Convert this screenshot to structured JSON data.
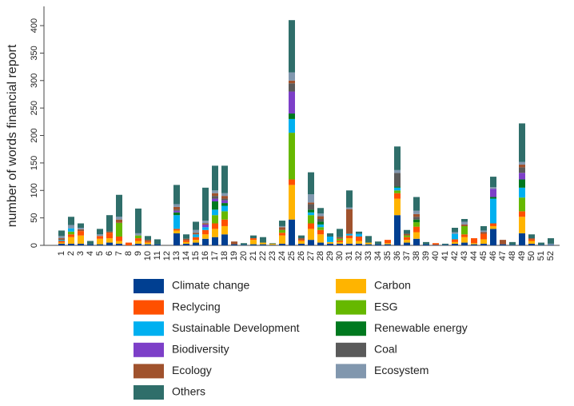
{
  "chart_data": {
    "type": "stacked_bar",
    "ylabel": "number of words financial report",
    "categories": [
      "1",
      "2",
      "3",
      "4",
      "5",
      "6",
      "7",
      "8",
      "9",
      "10",
      "11",
      "12",
      "13",
      "14",
      "15",
      "16",
      "17",
      "18",
      "19",
      "20",
      "21",
      "22",
      "23",
      "24",
      "25",
      "26",
      "27",
      "28",
      "29",
      "30",
      "31",
      "32",
      "33",
      "34",
      "35",
      "36",
      "37",
      "38",
      "39",
      "40",
      "41",
      "42",
      "43",
      "44",
      "45",
      "46",
      "47",
      "48",
      "49",
      "50",
      "51",
      "52"
    ],
    "ylim": [
      0,
      435
    ],
    "yticks": [
      0,
      50,
      100,
      150,
      200,
      250,
      300,
      350,
      400
    ],
    "series": [
      {
        "name": "Climate change",
        "color": "#003f91",
        "values": [
          3,
          3,
          3,
          2,
          2,
          5,
          3,
          0,
          3,
          2,
          2,
          0,
          22,
          3,
          5,
          12,
          15,
          20,
          2,
          1,
          2,
          2,
          1,
          3,
          47,
          3,
          10,
          5,
          3,
          3,
          3,
          3,
          2,
          2,
          2,
          55,
          5,
          12,
          2,
          1,
          1,
          3,
          5,
          2,
          3,
          30,
          2,
          1,
          22,
          3,
          1,
          1
        ]
      },
      {
        "name": "Carbon",
        "color": "#ffb400",
        "values": [
          2,
          12,
          15,
          0,
          10,
          8,
          5,
          0,
          5,
          3,
          0,
          0,
          5,
          3,
          5,
          8,
          15,
          15,
          0,
          0,
          8,
          3,
          2,
          15,
          63,
          5,
          20,
          15,
          3,
          3,
          10,
          5,
          3,
          0,
          2,
          30,
          5,
          12,
          0,
          0,
          0,
          3,
          10,
          2,
          8,
          5,
          0,
          0,
          30,
          5,
          0,
          0
        ]
      },
      {
        "name": "Reclycing",
        "color": "#ff5000",
        "values": [
          3,
          5,
          8,
          0,
          5,
          10,
          8,
          5,
          5,
          2,
          0,
          0,
          3,
          3,
          5,
          8,
          10,
          12,
          0,
          0,
          3,
          0,
          0,
          5,
          10,
          2,
          10,
          8,
          0,
          3,
          5,
          8,
          0,
          0,
          6,
          10,
          5,
          10,
          0,
          3,
          0,
          5,
          5,
          9,
          10,
          5,
          0,
          0,
          10,
          3,
          0,
          0
        ]
      },
      {
        "name": "ESG",
        "color": "#66b800",
        "values": [
          0,
          5,
          0,
          0,
          0,
          0,
          25,
          0,
          5,
          0,
          0,
          0,
          0,
          0,
          0,
          0,
          15,
          15,
          0,
          0,
          0,
          0,
          0,
          5,
          85,
          0,
          15,
          5,
          0,
          3,
          0,
          0,
          0,
          0,
          0,
          5,
          3,
          8,
          0,
          0,
          0,
          0,
          15,
          0,
          0,
          0,
          0,
          0,
          25,
          0,
          0,
          0
        ]
      },
      {
        "name": "Sustainable Development",
        "color": "#00b0f0",
        "values": [
          2,
          6,
          0,
          0,
          0,
          0,
          0,
          0,
          0,
          0,
          0,
          0,
          25,
          0,
          5,
          5,
          10,
          10,
          0,
          0,
          0,
          0,
          0,
          0,
          25,
          0,
          5,
          5,
          10,
          0,
          3,
          5,
          0,
          0,
          0,
          5,
          0,
          0,
          0,
          0,
          0,
          10,
          0,
          0,
          0,
          45,
          0,
          0,
          18,
          0,
          0,
          0
        ]
      },
      {
        "name": "Renewable energy",
        "color": "#00791f",
        "values": [
          0,
          0,
          0,
          0,
          0,
          0,
          0,
          0,
          0,
          0,
          0,
          0,
          5,
          0,
          0,
          0,
          15,
          5,
          0,
          0,
          0,
          0,
          0,
          0,
          10,
          0,
          5,
          5,
          0,
          0,
          0,
          0,
          0,
          0,
          0,
          2,
          0,
          5,
          0,
          0,
          0,
          0,
          0,
          0,
          0,
          3,
          0,
          0,
          15,
          0,
          0,
          0
        ]
      },
      {
        "name": "Biodiversity",
        "color": "#7d3fc8",
        "values": [
          0,
          0,
          0,
          0,
          0,
          0,
          0,
          0,
          0,
          0,
          0,
          0,
          3,
          0,
          0,
          5,
          5,
          5,
          0,
          0,
          0,
          0,
          0,
          0,
          40,
          0,
          0,
          0,
          0,
          0,
          0,
          0,
          0,
          0,
          0,
          0,
          0,
          0,
          0,
          0,
          0,
          0,
          0,
          0,
          0,
          15,
          0,
          0,
          12,
          0,
          0,
          0
        ]
      },
      {
        "name": "Coal",
        "color": "#5a5a5a",
        "values": [
          0,
          0,
          0,
          0,
          0,
          0,
          0,
          0,
          0,
          0,
          0,
          0,
          2,
          0,
          0,
          0,
          5,
          3,
          0,
          0,
          0,
          0,
          0,
          0,
          15,
          0,
          10,
          5,
          0,
          0,
          0,
          0,
          0,
          0,
          0,
          25,
          0,
          5,
          0,
          0,
          0,
          0,
          0,
          0,
          0,
          0,
          0,
          0,
          10,
          0,
          0,
          0
        ]
      },
      {
        "name": "Ecology",
        "color": "#a0522d",
        "values": [
          3,
          0,
          3,
          0,
          0,
          2,
          6,
          0,
          0,
          3,
          0,
          0,
          5,
          3,
          3,
          2,
          5,
          5,
          5,
          0,
          0,
          0,
          0,
          5,
          5,
          3,
          3,
          5,
          0,
          3,
          45,
          0,
          0,
          0,
          0,
          0,
          3,
          5,
          0,
          0,
          0,
          0,
          3,
          0,
          3,
          0,
          8,
          0,
          5,
          2,
          0,
          0
        ]
      },
      {
        "name": "Ecosystem",
        "color": "#8197ae",
        "values": [
          4,
          6,
          3,
          0,
          3,
          0,
          5,
          0,
          4,
          0,
          0,
          0,
          5,
          0,
          5,
          5,
          5,
          5,
          0,
          0,
          0,
          0,
          0,
          2,
          15,
          0,
          15,
          5,
          0,
          0,
          3,
          0,
          0,
          0,
          0,
          5,
          0,
          6,
          0,
          0,
          0,
          3,
          5,
          0,
          3,
          3,
          0,
          0,
          5,
          0,
          0,
          2
        ]
      },
      {
        "name": "Others",
        "color": "#2f6e6a",
        "values": [
          10,
          15,
          8,
          6,
          10,
          30,
          40,
          0,
          45,
          7,
          9,
          0,
          35,
          8,
          15,
          60,
          45,
          50,
          0,
          3,
          5,
          10,
          1,
          10,
          95,
          5,
          40,
          10,
          6,
          15,
          31,
          4,
          12,
          5,
          0,
          43,
          7,
          25,
          4,
          0,
          2,
          8,
          5,
          0,
          8,
          19,
          0,
          5,
          70,
          7,
          4,
          10
        ]
      }
    ]
  }
}
